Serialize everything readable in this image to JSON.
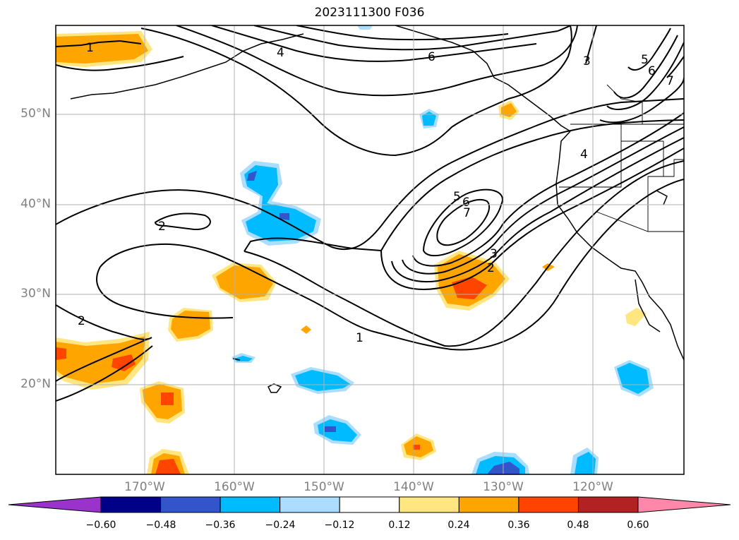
{
  "title": "2023111300 F036",
  "lat_labels": [
    "50°N",
    "40°N",
    "30°N",
    "20°N"
  ],
  "lon_labels": [
    "170°W",
    "160°W",
    "150°W",
    "140°W",
    "130°W",
    "120°W"
  ],
  "contour_labels": [
    "1",
    "2",
    "2",
    "1",
    "6",
    "4",
    "5",
    "6",
    "7",
    "3",
    "2",
    "3",
    "4",
    "5",
    "6",
    "7"
  ],
  "colorbar": {
    "ticks": [
      "−0.60",
      "−0.48",
      "−0.36",
      "−0.24",
      "−0.12",
      "0.12",
      "0.24",
      "0.36",
      "0.48",
      "0.60"
    ],
    "colors": [
      "#9933cc",
      "#000088",
      "#3355cc",
      "#00bbff",
      "#aaddff",
      "#ffffff",
      "#ffe680",
      "#ffa500",
      "#ff4400",
      "#b22222",
      "#ff88aa"
    ]
  }
}
